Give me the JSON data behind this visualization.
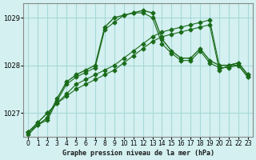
{
  "x": [
    0,
    1,
    2,
    3,
    4,
    5,
    6,
    7,
    8,
    9,
    10,
    11,
    12,
    13,
    14,
    15,
    16,
    17,
    18,
    19,
    20,
    21,
    22,
    23
  ],
  "line1": [
    1026.6,
    1026.8,
    1027.0,
    1027.2,
    1027.4,
    1027.6,
    1027.7,
    1027.8,
    1027.9,
    1028.0,
    1028.15,
    1028.3,
    1028.45,
    1028.6,
    1028.7,
    1028.75,
    1028.8,
    1028.85,
    1028.9,
    1028.95,
    1028.0,
    1028.0,
    1028.05,
    1027.8
  ],
  "line2": [
    1026.6,
    1026.8,
    1027.0,
    1027.2,
    1027.35,
    1027.5,
    1027.6,
    1027.7,
    1027.8,
    1027.9,
    1028.05,
    1028.2,
    1028.35,
    1028.5,
    1028.6,
    1028.65,
    1028.7,
    1028.75,
    1028.8,
    1028.85,
    1027.9,
    1028.0,
    1028.0,
    1027.75
  ],
  "line_main": [
    1026.55,
    1026.75,
    1026.9,
    1027.3,
    1027.65,
    1027.8,
    1027.9,
    1028.0,
    1028.8,
    1029.0,
    1029.05,
    1029.1,
    1029.15,
    1029.1,
    1028.55,
    1028.3,
    1028.15,
    1028.15,
    1028.35,
    1028.1,
    1028.0,
    1028.0,
    1028.05,
    1027.8
  ],
  "line3": [
    1026.6,
    1026.75,
    1026.85,
    1027.25,
    1027.6,
    1027.75,
    1027.85,
    1027.95,
    1028.75,
    1028.9,
    1029.05,
    1029.1,
    1029.1,
    1029.0,
    1028.45,
    1028.25,
    1028.1,
    1028.1,
    1028.3,
    1028.05,
    1027.95,
    1027.95,
    1028.0,
    1027.75
  ],
  "bg_color": "#d4f0f0",
  "grid_color": "#a8d8d8",
  "line_color": "#1a6b1a",
  "label": "Graphe pression niveau de la mer (hPa)",
  "ylim": [
    1026.5,
    1029.3
  ],
  "yticks": [
    1027,
    1028,
    1029
  ],
  "xlim": [
    -0.5,
    23.5
  ],
  "xticks": [
    0,
    1,
    2,
    3,
    4,
    5,
    6,
    7,
    8,
    9,
    10,
    11,
    12,
    13,
    14,
    15,
    16,
    17,
    18,
    19,
    20,
    21,
    22,
    23
  ]
}
